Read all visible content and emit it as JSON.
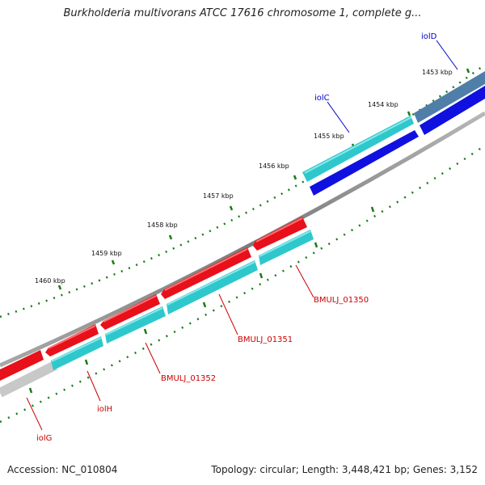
{
  "title": "Burkholderia multivorans ATCC 17616 chromosome 1, complete g...",
  "accession": "Accession: NC_010804",
  "summary": "Topology: circular; Length: 3,448,421 bp; Genes: 3,152",
  "colors": {
    "gene_forward": "#2ec8cc",
    "gene_reverse": "#e8101a",
    "gene_other_forward": "#4f7fa8",
    "gene_other_reverse": "#1010e0",
    "backbone": "#888888",
    "ticks": "#1a7a1a",
    "label_red": "#cc0000",
    "label_blue": "#0000cc"
  },
  "ticks": [
    {
      "label": "1453 kbp"
    },
    {
      "label": "1454 kbp"
    },
    {
      "label": "1455 kbp"
    },
    {
      "label": "1456 kbp"
    },
    {
      "label": "1457 kbp"
    },
    {
      "label": "1458 kbp"
    },
    {
      "label": "1459 kbp"
    },
    {
      "label": "1460 kbp"
    }
  ],
  "genes": [
    {
      "name": "iolD",
      "color": "#0000cc"
    },
    {
      "name": "iolC",
      "color": "#0000cc"
    },
    {
      "name": "BMULJ_01350",
      "color": "#cc0000"
    },
    {
      "name": "BMULJ_01351",
      "color": "#cc0000"
    },
    {
      "name": "BMULJ_01352",
      "color": "#cc0000"
    },
    {
      "name": "iolH",
      "color": "#cc0000"
    },
    {
      "name": "iolG",
      "color": "#cc0000"
    }
  ]
}
